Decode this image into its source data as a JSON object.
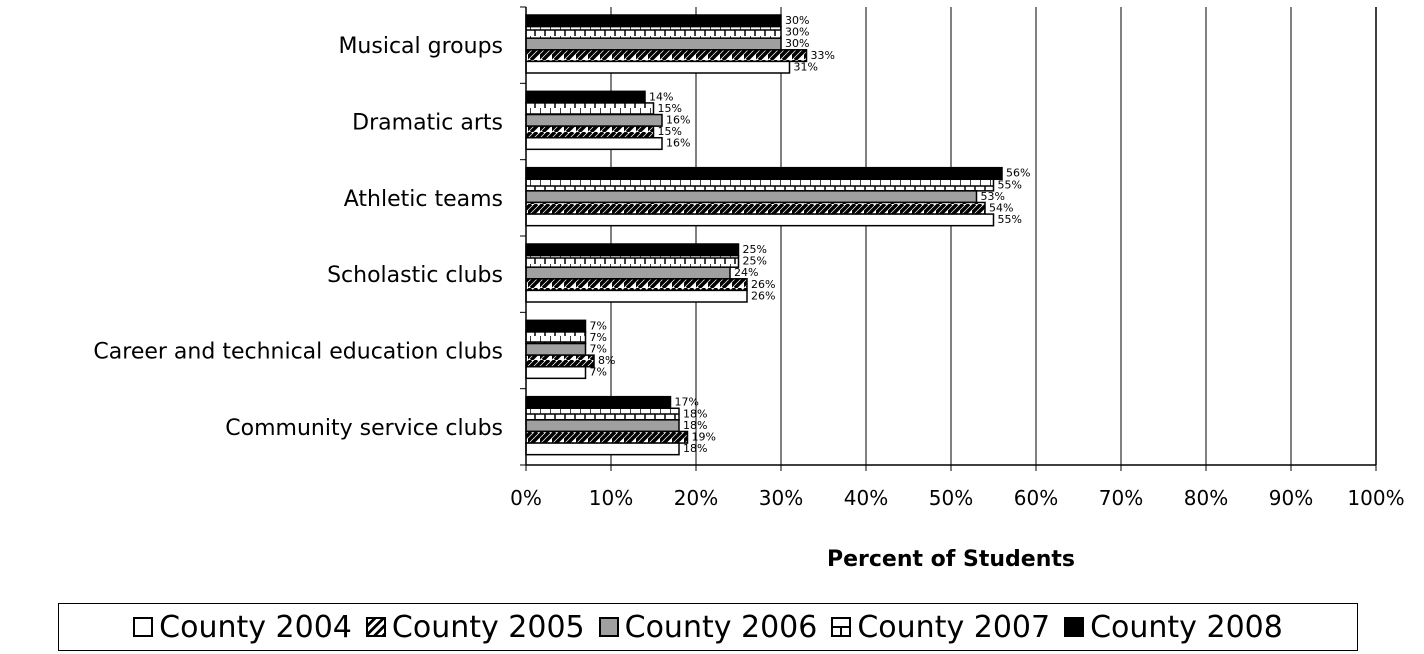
{
  "chart_data": {
    "type": "bar",
    "orientation": "horizontal",
    "categories": [
      "Musical groups",
      "Dramatic arts",
      "Athletic teams",
      "Scholastic clubs",
      "Career and technical education clubs",
      "Community service clubs"
    ],
    "series": [
      {
        "name": "County 2004",
        "values": [
          31,
          16,
          55,
          26,
          7,
          18
        ],
        "labels": [
          "31%",
          "16%",
          "55%",
          "26%",
          "7%",
          "18%"
        ],
        "pattern": "white",
        "color": "#ffffff"
      },
      {
        "name": "County 2005",
        "values": [
          33,
          15,
          54,
          26,
          8,
          19
        ],
        "labels": [
          "33%",
          "15%",
          "54%",
          "26%",
          "8%",
          "19%"
        ],
        "pattern": "diagonal-hatch",
        "color": "#ffffff"
      },
      {
        "name": "County 2006",
        "values": [
          30,
          16,
          53,
          24,
          7,
          18
        ],
        "labels": [
          "30%",
          "16%",
          "53%",
          "24%",
          "7%",
          "18%"
        ],
        "pattern": "gray",
        "color": "#a0a0a0"
      },
      {
        "name": "County 2007",
        "values": [
          30,
          15,
          55,
          25,
          7,
          18
        ],
        "labels": [
          "30%",
          "15%",
          "55%",
          "25%",
          "7%",
          "18%"
        ],
        "pattern": "dotted-brick",
        "color": "#ffffff"
      },
      {
        "name": "County 2008",
        "values": [
          30,
          14,
          56,
          25,
          7,
          17
        ],
        "labels": [
          "30%",
          "14%",
          "56%",
          "25%",
          "7%",
          "17%"
        ],
        "pattern": "black",
        "color": "#000000"
      }
    ],
    "xlim": [
      0,
      100
    ],
    "xticks": [
      "0%",
      "10%",
      "20%",
      "30%",
      "40%",
      "50%",
      "60%",
      "70%",
      "80%",
      "90%",
      "100%"
    ],
    "xlabel": "Percent of Students",
    "ylabel": "",
    "title": "",
    "grid": "vertical",
    "legend_position": "bottom"
  }
}
